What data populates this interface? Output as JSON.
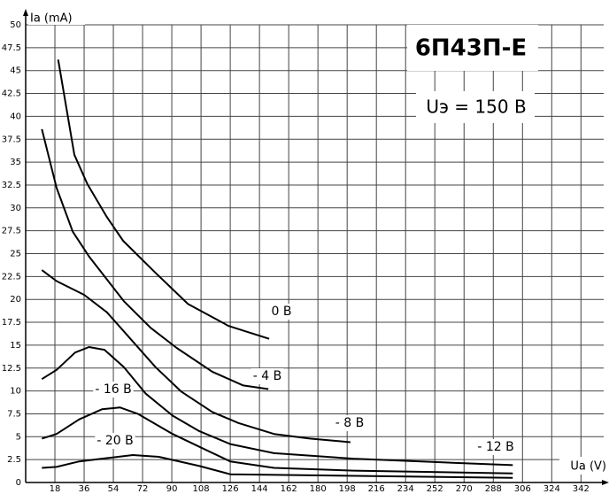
{
  "chart_data": {
    "type": "line",
    "title": "6П43П-Е",
    "subtitle": "Uэ = 150 В",
    "x_label": "Ua (V)",
    "y_label": "Ia (mA)",
    "xlim": [
      0,
      356
    ],
    "ylim": [
      0,
      50
    ],
    "xticks": [
      18,
      36,
      54,
      72,
      90,
      108,
      126,
      144,
      162,
      180,
      198,
      216,
      234,
      252,
      270,
      288,
      306,
      324,
      342
    ],
    "yticks": [
      0,
      2.5,
      5,
      7.5,
      10,
      12.5,
      15,
      17.5,
      20,
      22.5,
      25,
      27.5,
      30,
      32.5,
      35,
      37.5,
      40,
      42.5,
      45,
      47.5,
      50
    ],
    "grid": true,
    "series": [
      {
        "name": "0 В",
        "color": "#000000",
        "x": [
          20,
          30,
          38,
          50,
          60,
          80,
          100,
          125,
          150
        ],
        "values": [
          46.2,
          35.8,
          32.6,
          29,
          26.4,
          22.9,
          19.5,
          17.1,
          15.7
        ]
      },
      {
        "name": "- 4 В",
        "color": "#000000",
        "x": [
          10,
          19,
          29,
          39,
          50,
          60.5,
          77,
          93,
          115,
          134,
          149.5
        ],
        "values": [
          38.6,
          32.2,
          27.4,
          24.7,
          22.2,
          19.8,
          16.9,
          14.7,
          12.1,
          10.6,
          10.2
        ]
      },
      {
        "name": "- 8 В",
        "color": "#000000",
        "x": [
          10,
          19,
          36,
          50,
          63,
          80,
          96,
          115,
          131,
          153,
          175,
          200
        ],
        "values": [
          23.2,
          22,
          20.5,
          18.6,
          16,
          12.6,
          9.9,
          7.7,
          6.5,
          5.3,
          4.8,
          4.4
        ]
      },
      {
        "name": "- 12 В",
        "color": "#000000",
        "x": [
          10,
          19,
          30.5,
          39,
          48.5,
          60.5,
          74,
          90.5,
          107,
          126,
          153,
          202,
          257,
          300
        ],
        "values": [
          11.3,
          12.3,
          14.2,
          14.8,
          14.5,
          12.6,
          9.7,
          7.3,
          5.6,
          4.2,
          3.2,
          2.6,
          2.2,
          1.9
        ]
      },
      {
        "name": "- 16 В",
        "color": "#000000",
        "x": [
          10,
          19,
          33,
          47,
          58,
          69,
          90.5,
          107,
          126,
          153,
          202,
          300
        ],
        "values": [
          4.8,
          5.3,
          6.9,
          8,
          8.2,
          7.5,
          5.3,
          3.9,
          2.3,
          1.6,
          1.3,
          1
        ]
      },
      {
        "name": "- 20 В",
        "color": "#000000",
        "x": [
          10,
          19,
          33,
          47,
          66,
          82,
          107,
          126,
          300
        ],
        "values": [
          1.6,
          1.7,
          2.3,
          2.6,
          3,
          2.8,
          1.8,
          0.9,
          0.5
        ]
      }
    ]
  }
}
